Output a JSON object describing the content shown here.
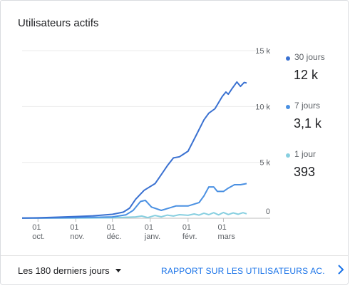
{
  "card": {
    "title": "Utilisateurs actifs"
  },
  "legend": [
    {
      "name": "30 jours",
      "value": "12 k",
      "color": "#3a71d1"
    },
    {
      "name": "7 jours",
      "value": "3,1 k",
      "color": "#4a90e2"
    },
    {
      "name": "1 jour",
      "value": "393",
      "color": "#87cfe0"
    }
  ],
  "footer": {
    "range_label": "Les 180 derniers jours",
    "report_link": "RAPPORT SUR LES UTILISATEURS AC...",
    "chevron_icon": "chevron-right-icon",
    "caret_icon": "caret-down-icon"
  },
  "chart_data": {
    "type": "line",
    "ylim": [
      0,
      15000
    ],
    "yticks": [
      {
        "value": 0,
        "label": "0"
      },
      {
        "value": 5000,
        "label": "5 k"
      },
      {
        "value": 10000,
        "label": "10 k"
      },
      {
        "value": 15000,
        "label": "15 k"
      }
    ],
    "xlim": [
      "2023-09-18",
      "2024-03-20"
    ],
    "xticks": [
      {
        "date": "2023-10-01",
        "day": "01",
        "month": "oct."
      },
      {
        "date": "2023-11-01",
        "day": "01",
        "month": "nov."
      },
      {
        "date": "2023-12-01",
        "day": "01",
        "month": "déc."
      },
      {
        "date": "2024-01-01",
        "day": "01",
        "month": "janv."
      },
      {
        "date": "2024-02-01",
        "day": "01",
        "month": "févr."
      },
      {
        "date": "2024-03-01",
        "day": "01",
        "month": "mars"
      }
    ],
    "series": [
      {
        "name": "30 jours",
        "color": "#3a71d1",
        "points": [
          [
            "2023-09-18",
            20
          ],
          [
            "2023-10-01",
            40
          ],
          [
            "2023-10-15",
            90
          ],
          [
            "2023-11-01",
            150
          ],
          [
            "2023-11-15",
            220
          ],
          [
            "2023-12-01",
            350
          ],
          [
            "2023-12-10",
            550
          ],
          [
            "2023-12-15",
            900
          ],
          [
            "2023-12-20",
            1700
          ],
          [
            "2023-12-27",
            2500
          ],
          [
            "2024-01-05",
            3100
          ],
          [
            "2024-01-10",
            3900
          ],
          [
            "2024-01-15",
            4700
          ],
          [
            "2024-01-20",
            5400
          ],
          [
            "2024-01-25",
            5500
          ],
          [
            "2024-02-01",
            6000
          ],
          [
            "2024-02-08",
            7500
          ],
          [
            "2024-02-14",
            8800
          ],
          [
            "2024-02-18",
            9400
          ],
          [
            "2024-02-23",
            9800
          ],
          [
            "2024-02-29",
            10900
          ],
          [
            "2024-03-03",
            11300
          ],
          [
            "2024-03-05",
            11100
          ],
          [
            "2024-03-08",
            11600
          ],
          [
            "2024-03-12",
            12200
          ],
          [
            "2024-03-15",
            11800
          ],
          [
            "2024-03-18",
            12150
          ],
          [
            "2024-03-20",
            12100
          ]
        ]
      },
      {
        "name": "7 jours",
        "color": "#4a90e2",
        "points": [
          [
            "2023-09-18",
            10
          ],
          [
            "2023-10-01",
            20
          ],
          [
            "2023-11-01",
            60
          ],
          [
            "2023-12-01",
            120
          ],
          [
            "2023-12-12",
            300
          ],
          [
            "2023-12-18",
            700
          ],
          [
            "2023-12-24",
            1500
          ],
          [
            "2023-12-28",
            1600
          ],
          [
            "2024-01-02",
            1000
          ],
          [
            "2024-01-10",
            700
          ],
          [
            "2024-01-16",
            900
          ],
          [
            "2024-01-22",
            1100
          ],
          [
            "2024-02-01",
            1100
          ],
          [
            "2024-02-10",
            1400
          ],
          [
            "2024-02-14",
            2000
          ],
          [
            "2024-02-18",
            2800
          ],
          [
            "2024-02-22",
            2800
          ],
          [
            "2024-02-25",
            2400
          ],
          [
            "2024-03-01",
            2400
          ],
          [
            "2024-03-05",
            2700
          ],
          [
            "2024-03-10",
            3000
          ],
          [
            "2024-03-15",
            3000
          ],
          [
            "2024-03-20",
            3100
          ]
        ]
      },
      {
        "name": "1 jour",
        "color": "#87cfe0",
        "points": [
          [
            "2023-09-18",
            5
          ],
          [
            "2023-11-01",
            20
          ],
          [
            "2023-12-01",
            40
          ],
          [
            "2023-12-20",
            120
          ],
          [
            "2023-12-25",
            200
          ],
          [
            "2023-12-30",
            60
          ],
          [
            "2024-01-05",
            250
          ],
          [
            "2024-01-10",
            130
          ],
          [
            "2024-01-15",
            280
          ],
          [
            "2024-01-20",
            200
          ],
          [
            "2024-01-25",
            320
          ],
          [
            "2024-02-01",
            260
          ],
          [
            "2024-02-06",
            380
          ],
          [
            "2024-02-10",
            280
          ],
          [
            "2024-02-14",
            450
          ],
          [
            "2024-02-18",
            320
          ],
          [
            "2024-02-22",
            500
          ],
          [
            "2024-02-26",
            300
          ],
          [
            "2024-03-01",
            520
          ],
          [
            "2024-03-05",
            330
          ],
          [
            "2024-03-09",
            480
          ],
          [
            "2024-03-13",
            360
          ],
          [
            "2024-03-17",
            500
          ],
          [
            "2024-03-20",
            393
          ]
        ]
      }
    ]
  }
}
